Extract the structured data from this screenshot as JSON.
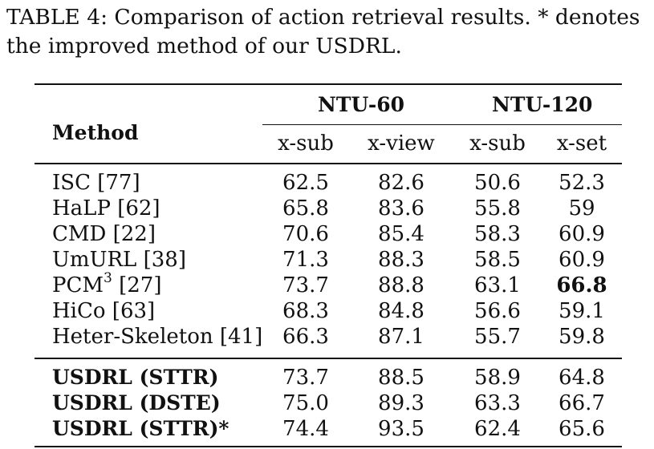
{
  "caption": {
    "line1": "TABLE 4: Comparison of action retrieval results. * denotes",
    "line2": "the improved method of our USDRL."
  },
  "table": {
    "method_header": "Method",
    "group_headers": [
      "NTU-60",
      "NTU-120"
    ],
    "sub_headers": [
      "x-sub",
      "x-view",
      "x-sub",
      "x-set"
    ],
    "rows_section1": [
      {
        "method": "ISC [77]",
        "values": [
          "62.5",
          "82.6",
          "50.6",
          "52.3"
        ]
      },
      {
        "method": "HaLP [62]",
        "values": [
          "65.8",
          "83.6",
          "55.8",
          "59"
        ]
      },
      {
        "method": "CMD [22]",
        "values": [
          "70.6",
          "85.4",
          "58.3",
          "60.9"
        ]
      },
      {
        "method": "UmURL [38]",
        "values": [
          "71.3",
          "88.3",
          "58.5",
          "60.9"
        ]
      },
      {
        "method": "PCM",
        "method_sup": "3",
        "method_suffix": " [27]",
        "values": [
          "73.7",
          "88.8",
          "63.1",
          "66.8"
        ]
      },
      {
        "method": "HiCo [63]",
        "values": [
          "68.3",
          "84.8",
          "56.6",
          "59.1"
        ]
      },
      {
        "method": "Heter-Skeleton [41]",
        "values": [
          "66.3",
          "87.1",
          "55.7",
          "59.8"
        ]
      }
    ],
    "rows_section2": [
      {
        "method": "USDRL (STTR)",
        "values": [
          "73.7",
          "88.5",
          "58.9",
          "64.8"
        ]
      },
      {
        "method": "USDRL (DSTE)",
        "values": [
          "75.0",
          "89.3",
          "63.3",
          "66.7"
        ]
      },
      {
        "method": "USDRL (STTR)*",
        "values": [
          "74.4",
          "93.5",
          "62.4",
          "65.6"
        ]
      }
    ]
  }
}
